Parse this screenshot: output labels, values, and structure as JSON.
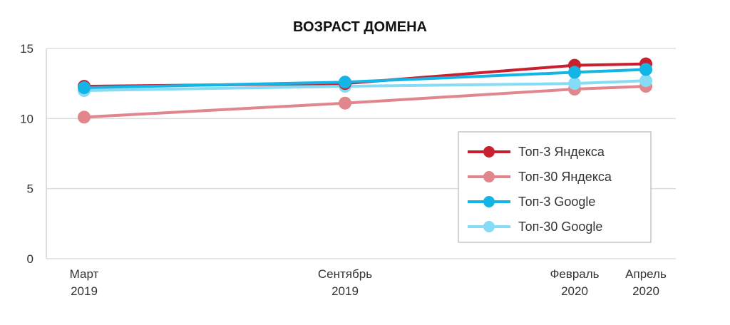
{
  "chart_data": {
    "type": "line",
    "title": "ВОЗРАСТ ДОМЕНА",
    "xlabel": "",
    "ylabel": "",
    "categories": [
      [
        "Март",
        "2019"
      ],
      [
        "Сентябрь",
        "2019"
      ],
      [
        "Февраль",
        "2020"
      ],
      [
        "Апрель",
        "2020"
      ]
    ],
    "ylim": [
      0,
      15
    ],
    "yticks": [
      "0",
      "5",
      "10",
      "15"
    ],
    "grid": true,
    "legend_position": "right",
    "series": [
      {
        "name": "Топ-3 Яндекса",
        "color": "#c8202f",
        "values": [
          12.3,
          12.5,
          13.8,
          13.9
        ]
      },
      {
        "name": "Топ-30 Яндекса",
        "color": "#e0868c",
        "values": [
          10.1,
          11.1,
          12.1,
          12.3
        ]
      },
      {
        "name": "Топ-3 Google",
        "color": "#12b5e6",
        "values": [
          12.2,
          12.6,
          13.3,
          13.5
        ]
      },
      {
        "name": "Топ-30 Google",
        "color": "#86dcf5",
        "values": [
          12.0,
          12.3,
          12.5,
          12.7
        ]
      }
    ]
  }
}
